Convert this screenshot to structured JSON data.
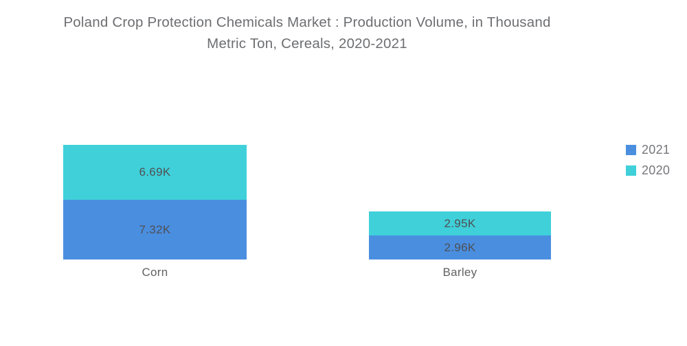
{
  "header": {
    "title_line1": "Poland Crop Protection Chemicals Market : Production Volume, in Thousand",
    "title_line2": "Metric Ton, Cereals, 2020-2021"
  },
  "legend": {
    "position": "right",
    "items": [
      {
        "label": "2021",
        "color": "#4A8EE0"
      },
      {
        "label": "2020",
        "color": "#3FD0D9"
      }
    ]
  },
  "chart_data": {
    "type": "bar",
    "subtype": "stacked-column",
    "title": "Poland Crop Protection Chemicals Market : Production Volume, in Thousand Metric Ton, Cereals, 2020-2021",
    "unit": "Thousand Metric Ton",
    "categories": [
      "Corn",
      "Barley"
    ],
    "series": [
      {
        "name": "2021",
        "color": "#4A8EE0",
        "values": [
          7.32,
          2.96
        ],
        "labels": [
          "7.32K",
          "2.96K"
        ]
      },
      {
        "name": "2020",
        "color": "#3FD0D9",
        "values": [
          6.69,
          2.95
        ],
        "labels": [
          "6.69K",
          "2.95K"
        ]
      }
    ],
    "stack_order_top_to_bottom": [
      "2020",
      "2021"
    ],
    "legend_position": "right",
    "grid": false,
    "axes_visible": false,
    "xlabel": "",
    "ylabel": ""
  }
}
